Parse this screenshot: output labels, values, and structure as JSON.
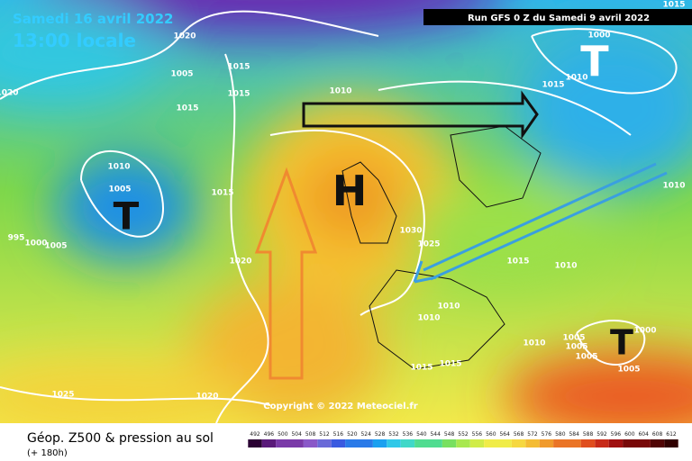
{
  "header": {
    "date": "Samedi 16 avril 2022",
    "time": "13:00 locale",
    "run": "Run GFS 0 Z du Samedi 9 avril 2022"
  },
  "centers": [
    "T",
    "H",
    "T",
    "T"
  ],
  "isobar_labels": [
    "1015",
    "1020",
    "1005",
    "1015",
    "1015",
    "1015",
    "1010",
    "1020",
    "1010",
    "1005",
    "1015",
    "995",
    "1000",
    "1005",
    "1020",
    "1030",
    "1025",
    "1015",
    "1010",
    "1010",
    "1010",
    "1010",
    "1005",
    "1005",
    "1005",
    "1000",
    "1005",
    "1015",
    "1015",
    "1025",
    "1020",
    "1000",
    "1010",
    "1015",
    "1010"
  ],
  "copyright": "Copyright © 2022 Meteociel.fr",
  "footer": {
    "title": "Géop. Z500 & pression au sol",
    "forecast": "(+ 180h)"
  },
  "scale": [
    492,
    496,
    500,
    504,
    508,
    512,
    516,
    520,
    524,
    528,
    532,
    536,
    540,
    544,
    548,
    552,
    556,
    560,
    564,
    568,
    572,
    576,
    580,
    584,
    588,
    592,
    596,
    600,
    604,
    608,
    612
  ]
}
